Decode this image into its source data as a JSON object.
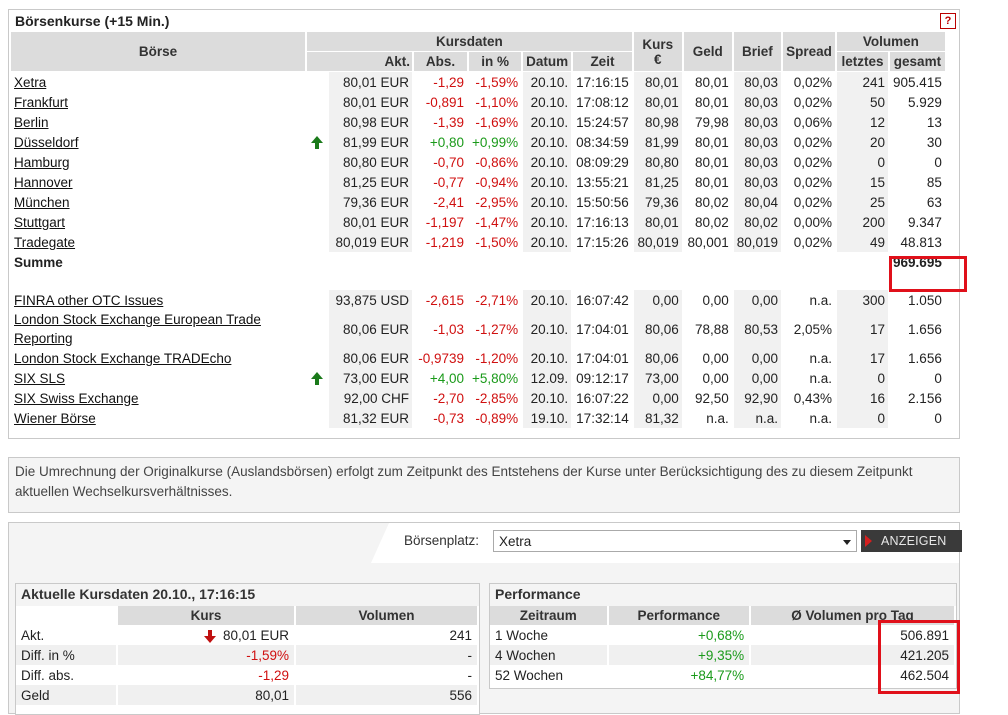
{
  "panel": {
    "title": "Börsenkurse (+15 Min.)",
    "help": "?"
  },
  "headers": {
    "boerse": "Börse",
    "kursdaten": "Kursdaten",
    "akt": "Akt.",
    "abs": "Abs.",
    "inpct": "in %",
    "datum": "Datum",
    "zeit": "Zeit",
    "kurs": "Kurs",
    "kurs_unit": "€",
    "geld": "Geld",
    "brief": "Brief",
    "spread": "Spread",
    "volumen": "Volumen",
    "letztes": "letztes",
    "gesamt": "gesamt"
  },
  "rows_main": [
    {
      "name": "Xetra",
      "arrow": "",
      "akt": "80,01 EUR",
      "abs": "-1,29",
      "pct": "-1,59%",
      "datum": "20.10.",
      "zeit": "17:16:15",
      "kurs": "80,01",
      "geld": "80,01",
      "brief": "80,03",
      "spread": "0,02%",
      "letztes": "241",
      "gesamt": "905.415"
    },
    {
      "name": "Frankfurt",
      "arrow": "",
      "akt": "80,01 EUR",
      "abs": "-0,891",
      "pct": "-1,10%",
      "datum": "20.10.",
      "zeit": "17:08:12",
      "kurs": "80,01",
      "geld": "80,01",
      "brief": "80,03",
      "spread": "0,02%",
      "letztes": "50",
      "gesamt": "5.929"
    },
    {
      "name": "Berlin",
      "arrow": "",
      "akt": "80,98 EUR",
      "abs": "-1,39",
      "pct": "-1,69%",
      "datum": "20.10.",
      "zeit": "15:24:57",
      "kurs": "80,98",
      "geld": "79,98",
      "brief": "80,03",
      "spread": "0,06%",
      "letztes": "12",
      "gesamt": "13"
    },
    {
      "name": "Düsseldorf",
      "arrow": "up",
      "akt": "81,99 EUR",
      "abs": "+0,80",
      "pct": "+0,99%",
      "datum": "20.10.",
      "zeit": "08:34:59",
      "kurs": "81,99",
      "geld": "80,01",
      "brief": "80,03",
      "spread": "0,02%",
      "letztes": "20",
      "gesamt": "30"
    },
    {
      "name": "Hamburg",
      "arrow": "",
      "akt": "80,80 EUR",
      "abs": "-0,70",
      "pct": "-0,86%",
      "datum": "20.10.",
      "zeit": "08:09:29",
      "kurs": "80,80",
      "geld": "80,01",
      "brief": "80,03",
      "spread": "0,02%",
      "letztes": "0",
      "gesamt": "0"
    },
    {
      "name": "Hannover",
      "arrow": "",
      "akt": "81,25 EUR",
      "abs": "-0,77",
      "pct": "-0,94%",
      "datum": "20.10.",
      "zeit": "13:55:21",
      "kurs": "81,25",
      "geld": "80,01",
      "brief": "80,03",
      "spread": "0,02%",
      "letztes": "15",
      "gesamt": "85"
    },
    {
      "name": "München",
      "arrow": "",
      "akt": "79,36 EUR",
      "abs": "-2,41",
      "pct": "-2,95%",
      "datum": "20.10.",
      "zeit": "15:50:56",
      "kurs": "79,36",
      "geld": "80,02",
      "brief": "80,04",
      "spread": "0,02%",
      "letztes": "25",
      "gesamt": "63"
    },
    {
      "name": "Stuttgart",
      "arrow": "",
      "akt": "80,01 EUR",
      "abs": "-1,197",
      "pct": "-1,47%",
      "datum": "20.10.",
      "zeit": "17:16:13",
      "kurs": "80,01",
      "geld": "80,02",
      "brief": "80,02",
      "spread": "0,00%",
      "letztes": "200",
      "gesamt": "9.347"
    },
    {
      "name": "Tradegate",
      "arrow": "",
      "akt": "80,019 EUR",
      "abs": "-1,219",
      "pct": "-1,50%",
      "datum": "20.10.",
      "zeit": "17:15:26",
      "kurs": "80,019",
      "geld": "80,001",
      "brief": "80,019",
      "spread": "0,02%",
      "letztes": "49",
      "gesamt": "48.813"
    }
  ],
  "summe": {
    "label": "Summe",
    "value": "969.695"
  },
  "rows_foreign": [
    {
      "name": "FINRA other OTC Issues",
      "name2": "",
      "arrow": "",
      "akt": "93,875 USD",
      "abs": "-2,615",
      "pct": "-2,71%",
      "datum": "20.10.",
      "zeit": "16:07:42",
      "kurs": "0,00",
      "geld": "0,00",
      "brief": "0,00",
      "spread": "n.a.",
      "letztes": "300",
      "gesamt": "1.050"
    },
    {
      "name": "London Stock Exchange European Trade",
      "name2": "Reporting",
      "arrow": "",
      "akt": "80,06 EUR",
      "abs": "-1,03",
      "pct": "-1,27%",
      "datum": "20.10.",
      "zeit": "17:04:01",
      "kurs": "80,06",
      "geld": "78,88",
      "brief": "80,53",
      "spread": "2,05%",
      "letztes": "17",
      "gesamt": "1.656"
    },
    {
      "name": "London Stock Exchange TRADEcho",
      "name2": "",
      "arrow": "",
      "akt": "80,06 EUR",
      "abs": "-0,9739",
      "pct": "-1,20%",
      "datum": "20.10.",
      "zeit": "17:04:01",
      "kurs": "80,06",
      "geld": "0,00",
      "brief": "0,00",
      "spread": "n.a.",
      "letztes": "17",
      "gesamt": "1.656"
    },
    {
      "name": "SIX SLS",
      "name2": "",
      "arrow": "up",
      "akt": "73,00 EUR",
      "abs": "+4,00",
      "pct": "+5,80%",
      "datum": "12.09.",
      "zeit": "09:12:17",
      "kurs": "73,00",
      "geld": "0,00",
      "brief": "0,00",
      "spread": "n.a.",
      "letztes": "0",
      "gesamt": "0"
    },
    {
      "name": "SIX Swiss Exchange",
      "name2": "",
      "arrow": "",
      "akt": "92,00 CHF",
      "abs": "-2,70",
      "pct": "-2,85%",
      "datum": "20.10.",
      "zeit": "16:07:22",
      "kurs": "0,00",
      "geld": "92,50",
      "brief": "92,90",
      "spread": "0,43%",
      "letztes": "16",
      "gesamt": "2.156"
    },
    {
      "name": "Wiener Börse",
      "name2": "",
      "arrow": "",
      "akt": "81,32 EUR",
      "abs": "-0,73",
      "pct": "-0,89%",
      "datum": "19.10.",
      "zeit": "17:32:14",
      "kurs": "81,32",
      "geld": "n.a.",
      "brief": "n.a.",
      "spread": "n.a.",
      "letztes": "0",
      "gesamt": "0"
    }
  ],
  "note": "Die Umrechnung der Originalkurse (Auslandsbörsen) erfolgt zum Zeitpunkt des Entstehens der Kurse unter Berücksichtigung des zu diesem Zeitpunkt aktuellen Wechselkursverhältnisses.",
  "selector": {
    "label": "Börsenplatz:",
    "value": "Xetra",
    "button": "ANZEIGEN"
  },
  "aktuell": {
    "title": "Aktuelle Kursdaten 20.10., 17:16:15",
    "col_kurs": "Kurs",
    "col_volumen": "Volumen",
    "rows": [
      {
        "label": "Akt.",
        "kurs": "80,01 EUR",
        "volumen": "241",
        "arrow": "down",
        "cls": ""
      },
      {
        "label": "Diff. in %",
        "kurs": "-1,59%",
        "volumen": "-",
        "arrow": "",
        "cls": "neg"
      },
      {
        "label": "Diff. abs.",
        "kurs": "-1,29",
        "volumen": "-",
        "arrow": "",
        "cls": "neg"
      },
      {
        "label": "Geld",
        "kurs": "80,01",
        "volumen": "556",
        "arrow": "",
        "cls": ""
      }
    ]
  },
  "performance": {
    "title": "Performance",
    "col_zeitraum": "Zeitraum",
    "col_performance": "Performance",
    "col_volumen": "Ø Volumen pro Tag",
    "rows": [
      {
        "zeitraum": "1 Woche",
        "performance": "+0,68%",
        "volumen": "506.891"
      },
      {
        "zeitraum": "4 Wochen",
        "performance": "+9,35%",
        "volumen": "421.205"
      },
      {
        "zeitraum": "52 Wochen",
        "performance": "+84,77%",
        "volumen": "462.504"
      }
    ]
  }
}
